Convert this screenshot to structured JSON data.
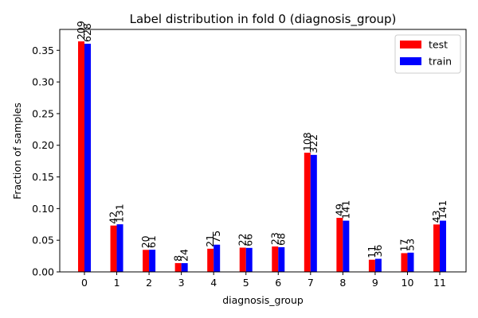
{
  "chart_data": {
    "type": "bar",
    "title": "Label distribution in fold 0 (diagnosis_group)",
    "xlabel": "diagnosis_group",
    "ylabel": "Fraction of samples",
    "categories": [
      "0",
      "1",
      "2",
      "3",
      "4",
      "5",
      "6",
      "7",
      "8",
      "9",
      "10",
      "11"
    ],
    "ylim": [
      0,
      0.383
    ],
    "yticks": [
      "0.00",
      "0.05",
      "0.10",
      "0.15",
      "0.20",
      "0.25",
      "0.30",
      "0.35"
    ],
    "grid": false,
    "legend_position": "top-right",
    "series": [
      {
        "name": "test",
        "color": "#ff0000",
        "values": [
          0.3641,
          0.0732,
          0.0348,
          0.0139,
          0.0366,
          0.0383,
          0.0401,
          0.1882,
          0.0854,
          0.0192,
          0.0296,
          0.0749
        ],
        "labels": [
          "209",
          "42",
          "20",
          "8",
          "21",
          "22",
          "23",
          "108",
          "49",
          "11",
          "17",
          "43"
        ]
      },
      {
        "name": "train",
        "color": "#0000ff",
        "values": [
          0.3604,
          0.0752,
          0.035,
          0.0138,
          0.043,
          0.0379,
          0.039,
          0.1848,
          0.0809,
          0.0207,
          0.0304,
          0.0809
        ],
        "labels": [
          "628",
          "131",
          "61",
          "24",
          "75",
          "66",
          "68",
          "322",
          "141",
          "36",
          "53",
          "141"
        ]
      }
    ]
  }
}
